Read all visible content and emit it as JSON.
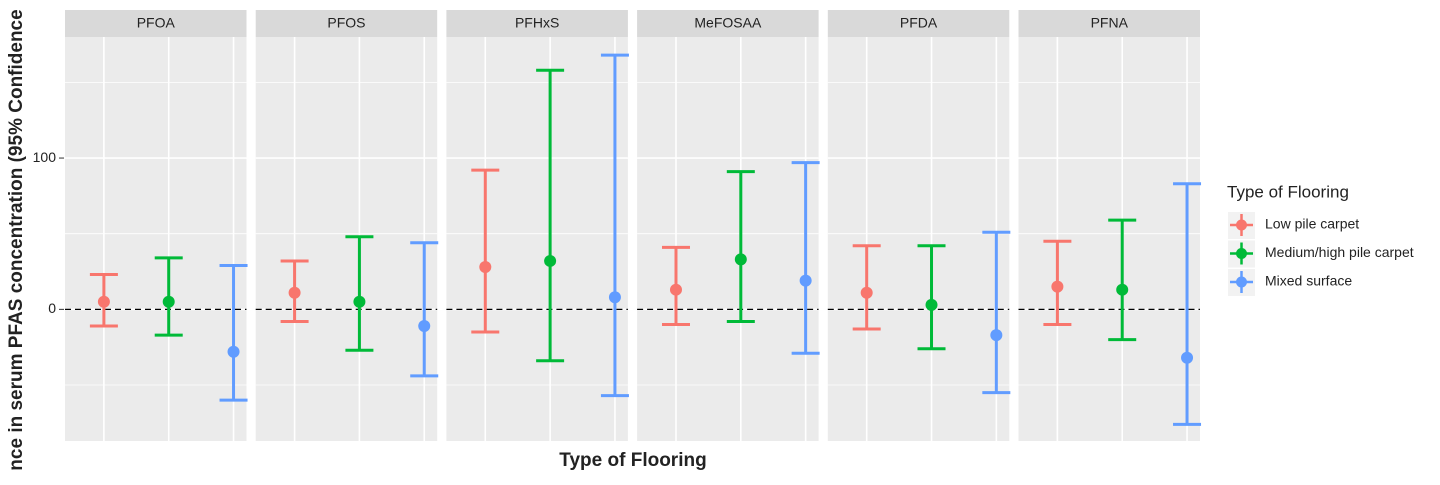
{
  "chart_data": {
    "type": "errorbar",
    "y_label": "nce in serum PFAS concentration (95% Confidence",
    "x_label": "Type of Flooring",
    "legend_title": "Type of Flooring",
    "facets": [
      "PFOA",
      "PFOS",
      "PFHxS",
      "MeFOSAA",
      "PFDA",
      "PFNA"
    ],
    "ylim": [
      -87,
      180
    ],
    "yticks": [
      0,
      100
    ],
    "minor_grid": [
      -50,
      50,
      150
    ],
    "grid": true,
    "reference_line": 0,
    "series": [
      {
        "name": "Low pile carpet",
        "color": "#f8766d",
        "values": [
          5,
          11,
          28,
          13,
          11,
          15
        ],
        "lower": [
          -11,
          -8,
          -15,
          -10,
          -13,
          -10
        ],
        "upper": [
          23,
          32,
          92,
          41,
          42,
          45
        ]
      },
      {
        "name": "Medium/high pile carpet",
        "color": "#00ba38",
        "values": [
          5,
          5,
          32,
          33,
          3,
          13
        ],
        "lower": [
          -17,
          -27,
          -34,
          -8,
          -26,
          -20
        ],
        "upper": [
          34,
          48,
          158,
          91,
          42,
          59
        ]
      },
      {
        "name": "Mixed surface",
        "color": "#619cff",
        "values": [
          -28,
          -11,
          8,
          19,
          -17,
          -32
        ],
        "lower": [
          -60,
          -44,
          -57,
          -29,
          -55,
          -76
        ],
        "upper": [
          29,
          44,
          168,
          97,
          51,
          83
        ]
      }
    ]
  }
}
